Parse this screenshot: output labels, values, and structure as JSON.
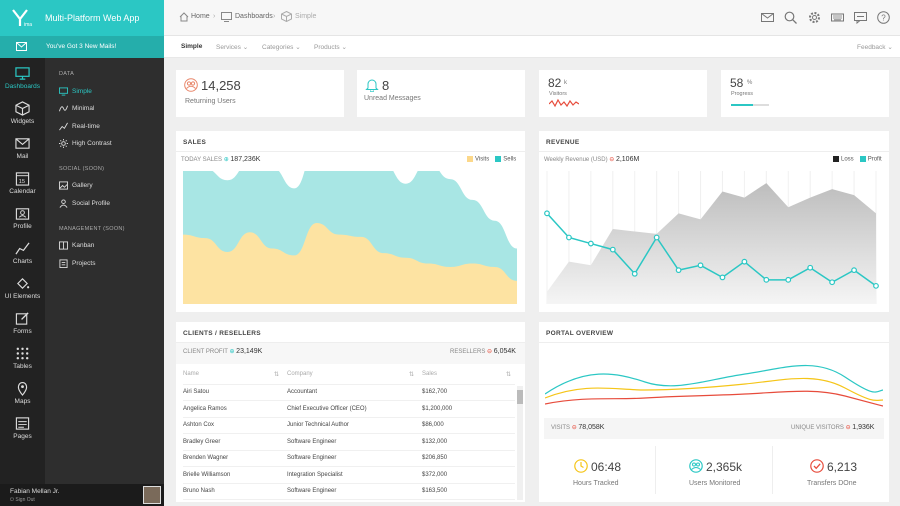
{
  "brand": {
    "title": "Multi-Platform Web App",
    "accent": "#2bc7c4"
  },
  "notice": {
    "text": "You've Got 3 New Mails!"
  },
  "rail": [
    {
      "label": "Dashboards",
      "icon": "monitor-icon",
      "active": true
    },
    {
      "label": "Widgets",
      "icon": "cube-icon"
    },
    {
      "label": "Mail",
      "icon": "envelope-icon"
    },
    {
      "label": "Calendar",
      "icon": "calendar-icon",
      "day": "15"
    },
    {
      "label": "Profile",
      "icon": "id-card-icon"
    },
    {
      "label": "Charts",
      "icon": "chart-line-icon"
    },
    {
      "label": "UI Elements",
      "icon": "paint-bucket-icon"
    },
    {
      "label": "Forms",
      "icon": "edit-icon"
    },
    {
      "label": "Tables",
      "icon": "grid-icon"
    },
    {
      "label": "Maps",
      "icon": "map-pin-icon"
    },
    {
      "label": "Pages",
      "icon": "pages-icon"
    }
  ],
  "submenu": {
    "sections": [
      {
        "header": "DATA",
        "items": [
          "Simple",
          "Minimal",
          "Real-time",
          "High Contrast"
        ]
      },
      {
        "header": "SOCIAL (SOON)",
        "items": [
          "Gallery",
          "Social Profile"
        ]
      },
      {
        "header": "MANAGEMENT (SOON)",
        "items": [
          "Kanban",
          "Projects"
        ]
      }
    ]
  },
  "user": {
    "name": "Fabian Mellan Jr.",
    "signout": "Sign Out"
  },
  "breadcrumb": [
    "Home",
    "Dashboards",
    "Simple"
  ],
  "tabs": [
    "Simple",
    "Services",
    "Categories",
    "Products"
  ],
  "feedback": "Feedback",
  "stats": [
    {
      "value": "14,258",
      "label": "Returning Users"
    },
    {
      "value": "8",
      "label": "Unread Messages"
    },
    {
      "value": "82",
      "unit": "k",
      "label": "Visitors"
    },
    {
      "value": "58",
      "unit": "%",
      "label": "Progress",
      "progress": 0.58
    }
  ],
  "sales": {
    "title": "SALES",
    "sub_label": "TODAY SALES",
    "sub_value": "187,236K",
    "legend": [
      "Visits",
      "Sells"
    ],
    "colors": [
      "#fcd88a",
      "#9ee3e3"
    ]
  },
  "revenue": {
    "title": "REVENUE",
    "sub_label": "Weekly Revenue (USD)",
    "sub_value": "2,106M",
    "legend": [
      "Loss",
      "Profit"
    ],
    "colors": [
      "#222222",
      "#2bc7c4"
    ]
  },
  "clients": {
    "title": "CLIENTS / RESELLERS",
    "left_label": "CLIENT PROFIT",
    "left_value": "23,149K",
    "right_label": "RESELLERS",
    "right_value": "6,054K",
    "columns": [
      "Name",
      "Company",
      "Sales"
    ],
    "rows": [
      [
        "Airi Satou",
        "Accountant",
        "$162,700"
      ],
      [
        "Angelica Ramos",
        "Chief Executive Officer (CEO)",
        "$1,200,000"
      ],
      [
        "Ashton Cox",
        "Junior Technical Author",
        "$86,000"
      ],
      [
        "Bradley Greer",
        "Software Engineer",
        "$132,000"
      ],
      [
        "Brenden Wagner",
        "Software Engineer",
        "$206,850"
      ],
      [
        "Brielle Williamson",
        "Integration Specialist",
        "$372,000"
      ],
      [
        "Bruno Nash",
        "Software Engineer",
        "$163,500"
      ]
    ]
  },
  "portal": {
    "title": "PORTAL OVERVIEW",
    "left_label": "VISITS",
    "left_value": "78,058K",
    "right_label": "UNIQUE VISITORS",
    "right_value": "1,936K",
    "metrics": [
      {
        "value": "06:48",
        "label": "Hours Tracked",
        "icon": "clock-icon",
        "color": "#f5c518"
      },
      {
        "value": "2,365k",
        "label": "Users Monitored",
        "icon": "users-icon",
        "color": "#2bc7c4"
      },
      {
        "value": "6,213",
        "label": "Transfers DOne",
        "icon": "check-circle-icon",
        "color": "#e74c3c"
      }
    ]
  },
  "chart_data": [
    {
      "type": "area",
      "title": "SALES",
      "series": [
        {
          "name": "Visits",
          "values": [
            60,
            57,
            45,
            62,
            48,
            42,
            70,
            60,
            58,
            44,
            40,
            35,
            32,
            35,
            32,
            20
          ]
        },
        {
          "name": "Sells",
          "values": [
            85,
            60,
            62,
            60,
            70,
            58,
            66,
            105,
            68,
            78,
            64,
            88,
            76,
            55,
            40,
            28
          ]
        }
      ]
    },
    {
      "type": "line",
      "title": "REVENUE",
      "series": [
        {
          "name": "Loss",
          "values": [
            10,
            35,
            32,
            62,
            60,
            58,
            75,
            70,
            93,
            88,
            100,
            80,
            88,
            95,
            90,
            75
          ]
        },
        {
          "name": "Profit",
          "values": [
            75,
            55,
            50,
            45,
            25,
            55,
            28,
            32,
            22,
            35,
            20,
            20,
            30,
            18,
            28,
            15
          ]
        }
      ],
      "ylim": [
        0,
        110
      ]
    }
  ]
}
